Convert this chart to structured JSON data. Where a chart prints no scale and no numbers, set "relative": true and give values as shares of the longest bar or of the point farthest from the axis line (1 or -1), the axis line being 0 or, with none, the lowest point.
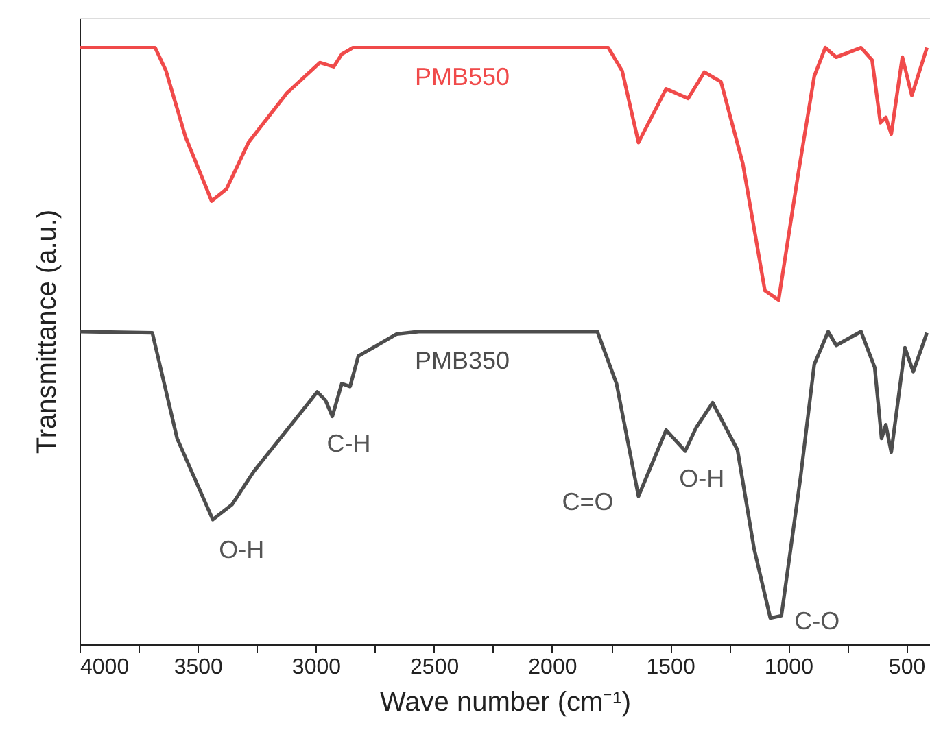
{
  "chart_data": {
    "type": "line",
    "relative": true,
    "xlabel": "Wave number (cm⁻¹)",
    "ylabel": "Transmittance (a.u.)",
    "xlim": [
      4000,
      400
    ],
    "xticks": [
      4000,
      {
        "value": 3750,
        "label": null
      },
      3500,
      {
        "value": 3250,
        "label": null
      },
      3000,
      {
        "value": 2750,
        "label": null
      },
      2500,
      {
        "value": 2250,
        "label": null
      },
      2000,
      {
        "value": 1750,
        "label": null
      },
      1500,
      {
        "value": 1250,
        "label": null
      },
      1000,
      {
        "value": 750,
        "label": null
      },
      500
    ],
    "grid": false,
    "legend": false,
    "marker": "none",
    "line_style": "solid",
    "series": [
      {
        "name": "PMB550",
        "color": "#f04a4a",
        "x": [
          4000,
          3680,
          3634,
          3552,
          3441,
          3378,
          3285,
          3122,
          2983,
          2924,
          2890,
          2843,
          1762,
          1703,
          1634,
          1517,
          1424,
          1355,
          1285,
          1192,
          1099,
          1041,
          959,
          890,
          843,
          797,
          692,
          645,
          610,
          587,
          564,
          517,
          477,
          413
        ],
        "values": [
          1.0,
          1.0,
          0.961,
          0.851,
          0.743,
          0.763,
          0.841,
          0.924,
          0.975,
          0.968,
          0.989,
          1.0,
          1.0,
          0.961,
          0.841,
          0.931,
          0.915,
          0.959,
          0.943,
          0.805,
          0.593,
          0.577,
          0.786,
          0.952,
          1.0,
          0.984,
          1.0,
          0.979,
          0.874,
          0.883,
          0.855,
          0.984,
          0.92,
          1.0
        ]
      },
      {
        "name": "PMB350",
        "color": "#4d4d4d",
        "x": [
          4000,
          3692,
          3587,
          3436,
          3355,
          3262,
          3076,
          2994,
          2959,
          2930,
          2890,
          2855,
          2820,
          2657,
          2564,
          1808,
          1727,
          1634,
          1517,
          1436,
          1390,
          1320,
          1215,
          1145,
          1076,
          1029,
          948,
          890,
          831,
          797,
          692,
          634,
          605,
          587,
          564,
          506,
          471,
          413
        ],
        "values": [
          0.524,
          0.522,
          0.345,
          0.209,
          0.234,
          0.29,
          0.382,
          0.423,
          0.409,
          0.382,
          0.437,
          0.432,
          0.483,
          0.52,
          0.524,
          0.524,
          0.437,
          0.248,
          0.359,
          0.324,
          0.363,
          0.405,
          0.326,
          0.161,
          0.044,
          0.048,
          0.28,
          0.469,
          0.524,
          0.501,
          0.524,
          0.464,
          0.345,
          0.368,
          0.322,
          0.497,
          0.457,
          0.522
        ]
      }
    ],
    "annotations": [
      {
        "text": "O-H",
        "x": 3436,
        "y": 0.209
      },
      {
        "text": "C-H",
        "x": 2930,
        "y": 0.382
      },
      {
        "text": "C=O",
        "x": 1634,
        "y": 0.248
      },
      {
        "text": "O-H",
        "x": 1436,
        "y": 0.324
      },
      {
        "text": "C-O",
        "x": 1029,
        "y": 0.048
      }
    ]
  }
}
